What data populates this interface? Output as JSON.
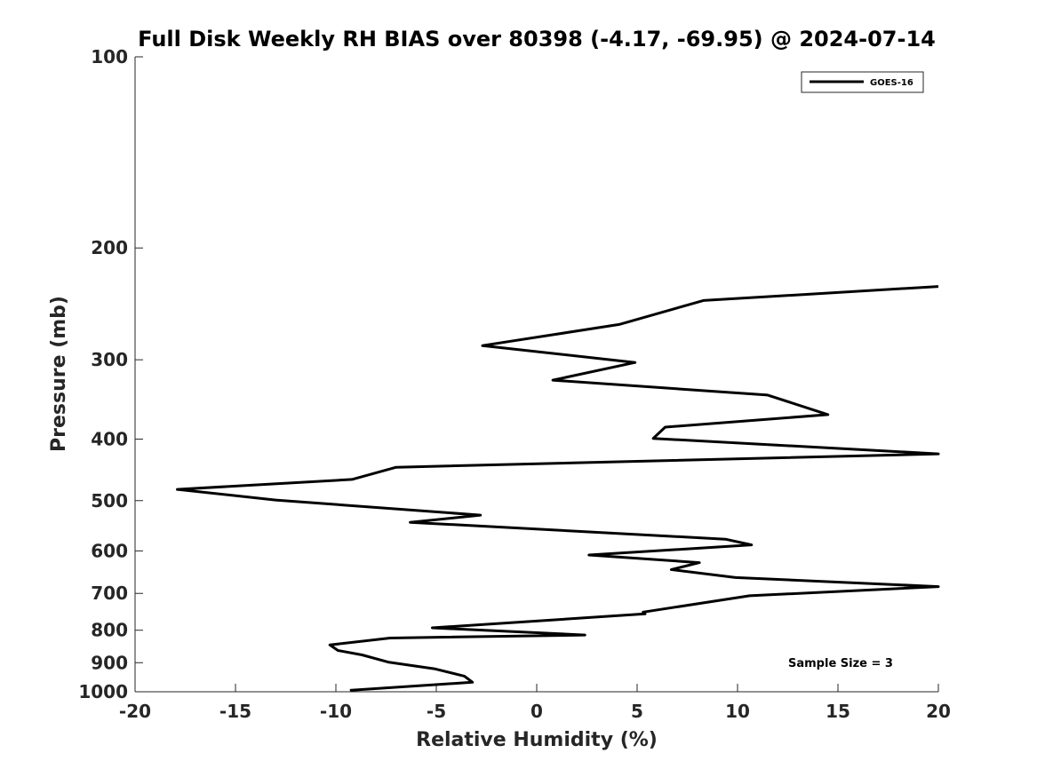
{
  "chart_data": {
    "type": "line",
    "title": "Full Disk Weekly RH BIAS over 80398 (-4.17, -69.95) @ 2024-07-14",
    "xlabel": "Relative Humidity (%)",
    "ylabel": "Pressure (mb)",
    "xlim": [
      -20,
      20
    ],
    "ylim": [
      1000,
      100
    ],
    "yscale": "log",
    "xticks": [
      "-20",
      "-15",
      "-10",
      "-5",
      "0",
      "5",
      "10",
      "15",
      "20"
    ],
    "yticks": [
      "100",
      "200",
      "300",
      "400",
      "500",
      "600",
      "700",
      "800",
      "900",
      "1000"
    ],
    "legend_position": "top-right",
    "grid": false,
    "series": [
      {
        "name": "GOES-16",
        "color": "#000000",
        "x": [
          -9.3,
          -3.2,
          -3.6,
          -5.1,
          -7.4,
          -8.7,
          -9.9,
          -10.3,
          -7.3,
          2.4,
          -5.2,
          5.4,
          5.3,
          10.6,
          20.0,
          9.9,
          6.7,
          8.1,
          2.6,
          10.7,
          9.4,
          -6.3,
          -2.8,
          -13.0,
          -17.9,
          -9.2,
          -7.0,
          20.0,
          5.8,
          6.4,
          14.5,
          11.5,
          0.8,
          4.9,
          -2.7,
          4.1,
          8.3,
          20.0
        ],
        "y": [
          995,
          966,
          945,
          920,
          898,
          875,
          861,
          844,
          823,
          814,
          793,
          754,
          749,
          706,
          683,
          661,
          642,
          626,
          609,
          587,
          575,
          541,
          527,
          499,
          480,
          463,
          443,
          422,
          399,
          383,
          366,
          341,
          323,
          303,
          285,
          264,
          242,
          230
        ]
      }
    ],
    "annotation": "Sample Size = 3"
  }
}
